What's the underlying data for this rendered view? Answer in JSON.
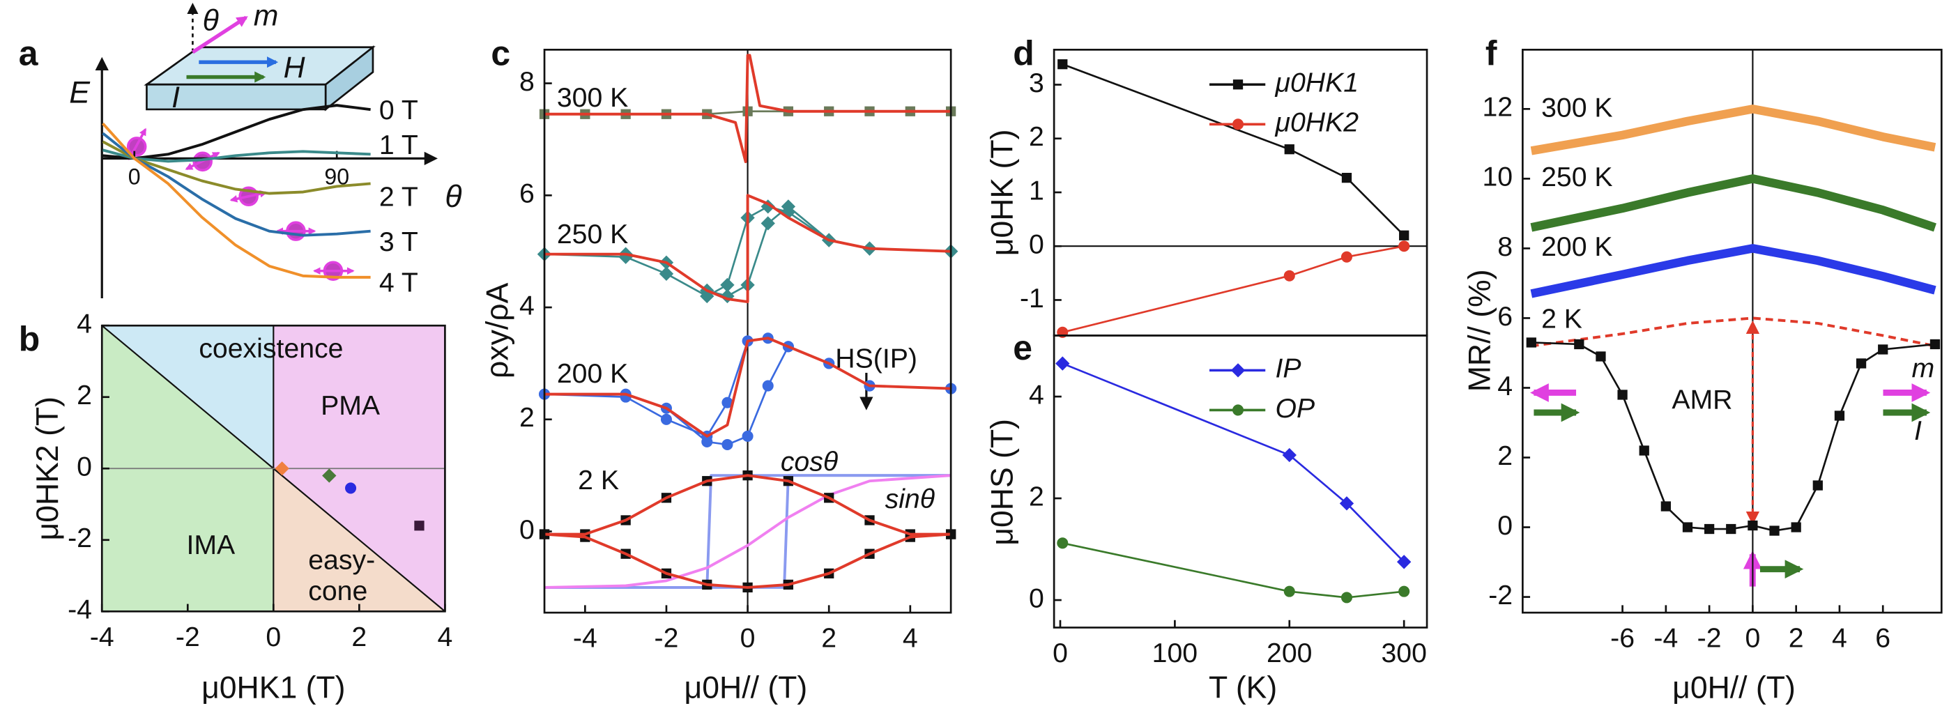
{
  "chart_data": [
    {
      "panel": "a",
      "type": "line",
      "xlabel": "θ",
      "ylabel": "E",
      "x": [
        -14,
        0,
        15,
        30,
        45,
        60,
        75,
        90,
        105
      ],
      "xlim": [
        -14.4,
        130.9
      ],
      "ylim": [
        -1,
        0.6
      ],
      "xticks": [
        0,
        90
      ],
      "series": [
        {
          "name": "0 T",
          "color": "#111111",
          "values": [
            0.02,
            0,
            0.03,
            0.1,
            0.19,
            0.28,
            0.35,
            0.38,
            0.35
          ]
        },
        {
          "name": "1 T",
          "color": "#3a8a8a",
          "values": [
            0.06,
            0,
            -0.02,
            -0.01,
            0.02,
            0.04,
            0.05,
            0.04,
            0.03
          ]
        },
        {
          "name": "2 T",
          "color": "#8b8b2a",
          "values": [
            0.12,
            0,
            -0.08,
            -0.16,
            -0.22,
            -0.25,
            -0.24,
            -0.2,
            -0.18
          ]
        },
        {
          "name": "3 T",
          "color": "#2a6ea8",
          "values": [
            0.18,
            0,
            -0.13,
            -0.29,
            -0.43,
            -0.52,
            -0.55,
            -0.54,
            -0.52
          ]
        },
        {
          "name": "4 T",
          "color": "#f0902a",
          "values": [
            0.25,
            0,
            -0.18,
            -0.42,
            -0.62,
            -0.77,
            -0.84,
            -0.85,
            -0.85
          ]
        }
      ],
      "annotations": [
        {
          "text": "θ",
          "color": "#111111"
        },
        {
          "text": "m",
          "color": "#e040e0"
        },
        {
          "text": "H",
          "color": "#2a6ee0"
        },
        {
          "text": "I",
          "color": "#3a7a2a"
        }
      ]
    },
    {
      "panel": "b",
      "type": "scatter",
      "xlabel": "μ0HK1 (T)",
      "ylabel": "μ0HK2 (T)",
      "xlim": [
        -4,
        4
      ],
      "ylim": [
        -4,
        4
      ],
      "xticks": [
        -4,
        -2,
        0,
        2,
        4
      ],
      "yticks": [
        -4,
        -2,
        0,
        2,
        4
      ],
      "series": [
        {
          "color": "#f08040",
          "marker": "diamond",
          "x": [
            0.2
          ],
          "values": [
            0
          ]
        },
        {
          "color": "#4a7a3a",
          "marker": "diamond",
          "x": [
            1.3
          ],
          "values": [
            -0.2
          ]
        },
        {
          "color": "#2a2ae0",
          "marker": "circle",
          "x": [
            1.8
          ],
          "values": [
            -0.55
          ]
        },
        {
          "color": "#3a1a3a",
          "marker": "square",
          "x": [
            3.4
          ],
          "values": [
            -1.6
          ]
        }
      ],
      "annotations": [
        {
          "text": "coexistence",
          "color": "#111111"
        },
        {
          "text": "PMA",
          "color": "#111111"
        },
        {
          "text": "IMA",
          "color": "#111111"
        },
        {
          "text": "easy-",
          "color": "#111111"
        },
        {
          "text": "cone",
          "color": "#111111"
        }
      ]
    },
    {
      "panel": "c",
      "type": "line",
      "xlabel": "μ0H// (T)",
      "ylabel": "ρxy/ρA",
      "xlim": [
        -5,
        5
      ],
      "ylim": [
        -1.45,
        8.6
      ],
      "xticks": [
        -4,
        -2,
        0,
        2,
        4
      ],
      "yticks": [
        0,
        2,
        4,
        6,
        8
      ],
      "series": [
        {
          "color": "#8a9af0",
          "x": [
            -5,
            0.9,
            1.0,
            5
          ],
          "values": [
            -1,
            -1,
            1,
            1
          ]
        },
        {
          "color": "#8a9af0",
          "x": [
            -5,
            -1.0,
            -0.9,
            5
          ],
          "values": [
            -1,
            -1,
            1,
            1
          ]
        },
        {
          "color": "#f080f0",
          "x": [
            -5,
            -3,
            -2,
            -1,
            0,
            1,
            2,
            3,
            5
          ],
          "values": [
            -1,
            -0.97,
            -0.88,
            -0.65,
            -0.25,
            0.25,
            0.65,
            0.9,
            1
          ]
        },
        {
          "color": "#6a7a5a",
          "marker": "square",
          "x": [
            -5,
            -4,
            -3,
            -2,
            -1,
            0,
            1,
            2,
            3,
            4,
            5
          ],
          "values": [
            7.45,
            7.45,
            7.45,
            7.45,
            7.45,
            7.5,
            7.5,
            7.5,
            7.5,
            7.5,
            7.5
          ]
        },
        {
          "color": "#e03a2a",
          "x": [
            -5,
            -1,
            -0.3,
            -0.05,
            0,
            0.05,
            0.3,
            1,
            5
          ],
          "values": [
            7.45,
            7.45,
            7.3,
            6.6,
            8.5,
            8.5,
            7.6,
            7.5,
            7.5
          ]
        },
        {
          "color": "#3a8a8a",
          "marker": "diamond",
          "x": [
            -5,
            -3,
            -2,
            -1,
            -0.5,
            0,
            0.5,
            1,
            2,
            3,
            5
          ],
          "values": [
            4.95,
            4.95,
            4.8,
            4.3,
            4.2,
            4.4,
            5.5,
            5.8,
            5.2,
            5.05,
            5.0
          ]
        },
        {
          "color": "#3a8a8a",
          "marker": "diamond",
          "x": [
            -5,
            -3,
            -2,
            -1,
            -0.5,
            0,
            0.5,
            1,
            2,
            3,
            5
          ],
          "values": [
            4.95,
            4.9,
            4.6,
            4.2,
            4.4,
            5.6,
            5.8,
            5.7,
            5.2,
            5.05,
            5.0
          ]
        },
        {
          "color": "#e03a2a",
          "x": [
            -5,
            -3,
            -2,
            -1,
            -0.5,
            0,
            0,
            0.5,
            1,
            2,
            3,
            5
          ],
          "values": [
            4.95,
            4.95,
            4.8,
            4.3,
            4.15,
            4.1,
            6.0,
            5.85,
            5.6,
            5.2,
            5.05,
            5.0
          ]
        },
        {
          "color": "#3a6ae0",
          "marker": "circle",
          "x": [
            -5,
            -3,
            -2,
            -1,
            -0.5,
            0,
            0.5,
            1,
            2,
            3,
            5
          ],
          "values": [
            2.45,
            2.45,
            2.2,
            1.6,
            1.55,
            1.7,
            2.6,
            3.3,
            3.0,
            2.6,
            2.55
          ]
        },
        {
          "color": "#3a6ae0",
          "marker": "circle",
          "x": [
            -5,
            -3,
            -2,
            -1,
            -0.5,
            0,
            0.5,
            1,
            2,
            3,
            5
          ],
          "values": [
            2.45,
            2.4,
            2.0,
            1.7,
            2.3,
            3.4,
            3.45,
            3.3,
            3.0,
            2.6,
            2.55
          ]
        },
        {
          "color": "#e03a2a",
          "x": [
            -5,
            -3,
            -2,
            -1,
            -0.5,
            0,
            0.5,
            1,
            2,
            3,
            5
          ],
          "values": [
            2.45,
            2.45,
            2.2,
            1.7,
            1.9,
            3.4,
            3.45,
            3.3,
            3.0,
            2.6,
            2.55
          ]
        },
        {
          "color": "#111111",
          "marker": "square",
          "x": [
            -5,
            -4,
            -3,
            -2,
            -1,
            0,
            1,
            2,
            3,
            4,
            5
          ],
          "values": [
            -0.05,
            -0.05,
            0.2,
            0.6,
            0.9,
            1.0,
            0.9,
            0.6,
            0.2,
            -0.05,
            -0.05
          ]
        },
        {
          "color": "#111111",
          "marker": "square",
          "x": [
            -5,
            -4,
            -3,
            -2,
            -1,
            0,
            1,
            2,
            3,
            4,
            5
          ],
          "values": [
            -0.05,
            -0.1,
            -0.4,
            -0.75,
            -0.95,
            -1.0,
            -0.95,
            -0.75,
            -0.4,
            -0.1,
            -0.05
          ]
        },
        {
          "color": "#e03a2a",
          "x": [
            -5,
            -4,
            -3,
            -2,
            -1,
            0,
            1,
            2,
            3,
            4,
            5
          ],
          "values": [
            -0.05,
            -0.05,
            0.2,
            0.6,
            0.9,
            1.0,
            0.9,
            0.6,
            0.2,
            -0.05,
            -0.05
          ]
        },
        {
          "color": "#e03a2a",
          "x": [
            -5,
            -4,
            -3,
            -2,
            -1,
            0,
            1,
            2,
            3,
            4,
            5
          ],
          "values": [
            -0.05,
            -0.1,
            -0.4,
            -0.75,
            -0.95,
            -1.0,
            -0.95,
            -0.75,
            -0.4,
            -0.1,
            -0.05
          ]
        }
      ],
      "annotations": [
        {
          "text": "300 K",
          "color": "#2e6e8e"
        },
        {
          "text": "250 K",
          "color": "#3a7a3a"
        },
        {
          "text": "200 K",
          "color": "#4a6ae8"
        },
        {
          "text": "2 K",
          "color": "#111111"
        },
        {
          "text": "HS(IP)",
          "color": "#111111"
        },
        {
          "text": "cosθ",
          "color": "#7a8ef0"
        },
        {
          "text": "sinθ",
          "color": "#e070e0"
        }
      ]
    },
    {
      "panel": "d",
      "type": "line",
      "ylabel": "μ0HK (T)",
      "legend": "upper right",
      "xlim": [
        -5.4,
        320
      ],
      "ylim": [
        -1.66,
        3.65
      ],
      "yticks": [
        -1,
        0,
        1,
        2,
        3
      ],
      "series": [
        {
          "name": "μ0HK1",
          "color": "#111111",
          "marker": "square",
          "x": [
            2,
            200,
            250,
            300
          ],
          "values": [
            3.38,
            1.8,
            1.27,
            0.2
          ]
        },
        {
          "name": "μ0HK2",
          "color": "#e03a2a",
          "marker": "circle",
          "x": [
            2,
            200,
            250,
            300
          ],
          "values": [
            -1.6,
            -0.55,
            -0.2,
            0
          ]
        }
      ]
    },
    {
      "panel": "e",
      "type": "line",
      "xlabel": "T (K)",
      "ylabel": "μ0HS (T)",
      "legend": "upper right",
      "xlim": [
        -5.4,
        320
      ],
      "ylim": [
        -0.54,
        5.2
      ],
      "xticks": [
        0,
        100,
        200,
        300
      ],
      "yticks": [
        0,
        2,
        4
      ],
      "series": [
        {
          "name": "IP",
          "color": "#2a2ae0",
          "marker": "diamond",
          "x": [
            2,
            200,
            250,
            300
          ],
          "values": [
            4.65,
            2.85,
            1.9,
            0.75
          ]
        },
        {
          "name": "OP",
          "color": "#3a7a2a",
          "marker": "circle",
          "x": [
            2,
            200,
            250,
            300
          ],
          "values": [
            1.12,
            0.17,
            0.05,
            0.17
          ]
        }
      ]
    },
    {
      "panel": "f",
      "type": "line",
      "xlabel": "μ0H// (T)",
      "ylabel": "MR// (%)",
      "xlim": [
        -10.6,
        8.7
      ],
      "ylim": [
        -2.45,
        13.7
      ],
      "xticks": [
        -6,
        -4,
        -2,
        0,
        2,
        4,
        6
      ],
      "yticks": [
        -2,
        0,
        2,
        4,
        6,
        8,
        10,
        12
      ],
      "series": [
        {
          "color": "#f0a050",
          "x": [
            -10.2,
            -6,
            -3,
            0,
            3,
            6,
            8.4
          ],
          "values": [
            10.8,
            11.25,
            11.65,
            12.0,
            11.65,
            11.2,
            10.9
          ]
        },
        {
          "color": "#3a7a2a",
          "x": [
            -10.2,
            -6,
            -3,
            0,
            3,
            6,
            8.4
          ],
          "values": [
            8.6,
            9.15,
            9.6,
            10.0,
            9.6,
            9.1,
            8.6
          ]
        },
        {
          "color": "#2a3ae8",
          "x": [
            -10.2,
            -6,
            -3,
            0,
            3,
            6,
            8.4
          ],
          "values": [
            6.7,
            7.25,
            7.65,
            8.0,
            7.65,
            7.2,
            6.8
          ]
        },
        {
          "color": "#e03a2a",
          "dash": true,
          "x": [
            -10.2,
            -6,
            -3,
            0,
            3,
            6,
            8.4
          ],
          "values": [
            5.2,
            5.55,
            5.85,
            6.0,
            5.85,
            5.5,
            5.2
          ]
        },
        {
          "color": "#111111",
          "marker": "square",
          "x": [
            -10.2,
            -8,
            -7,
            -6,
            -5,
            -4,
            -3,
            -2,
            -1,
            0,
            1,
            2,
            3,
            4,
            5,
            6,
            8.4
          ],
          "values": [
            5.3,
            5.25,
            4.9,
            3.8,
            2.2,
            0.6,
            0.0,
            -0.05,
            -0.05,
            0.05,
            -0.1,
            0,
            1.2,
            3.2,
            4.7,
            5.1,
            5.25
          ]
        }
      ],
      "annotations": [
        {
          "text": "300 K",
          "color": "#d9802a"
        },
        {
          "text": "250 K",
          "color": "#3a7a2a"
        },
        {
          "text": "200 K",
          "color": "#2a3ae8"
        },
        {
          "text": "2 K",
          "color": "#111111"
        },
        {
          "text": "AMR",
          "color": "#e03a2a"
        },
        {
          "text": "m",
          "color": "#e040e0"
        },
        {
          "text": "I",
          "color": "#3a7a2a"
        }
      ]
    }
  ]
}
